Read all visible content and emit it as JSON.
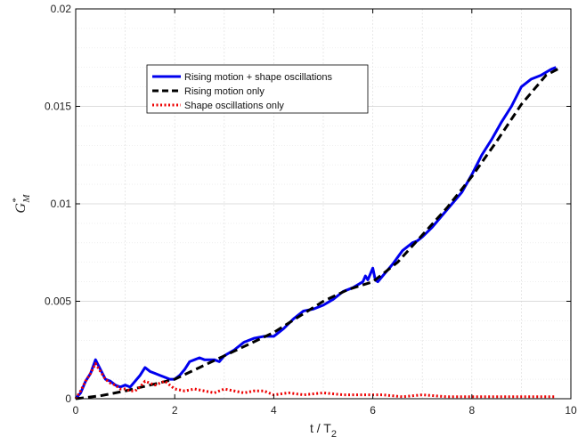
{
  "chart_data": {
    "type": "line",
    "xlabel_main": "t / T",
    "xlabel_sub": "2",
    "ylabel_main": "G",
    "ylabel_sup": "*",
    "ylabel_sub": "M",
    "xlim": [
      0,
      10
    ],
    "ylim": [
      0,
      0.02
    ],
    "xticks": [
      0,
      2,
      4,
      6,
      8,
      10
    ],
    "xtick_labels": [
      "0",
      "2",
      "4",
      "6",
      "8",
      "10"
    ],
    "yticks": [
      0,
      0.005,
      0.01,
      0.015,
      0.02
    ],
    "ytick_labels": [
      "0",
      "0.005",
      "0.01",
      "0.015",
      "0.02"
    ],
    "grid": true,
    "legend_position": "upper-left-center",
    "series": [
      {
        "name": "Rising motion + shape oscillations",
        "color": "#0000ee",
        "style": "solid",
        "x": [
          0,
          0.1,
          0.2,
          0.3,
          0.4,
          0.5,
          0.6,
          0.7,
          0.8,
          0.9,
          1.0,
          1.1,
          1.2,
          1.3,
          1.4,
          1.5,
          1.6,
          1.7,
          1.8,
          1.9,
          2.0,
          2.1,
          2.2,
          2.3,
          2.4,
          2.5,
          2.6,
          2.7,
          2.8,
          2.9,
          3.0,
          3.2,
          3.4,
          3.6,
          3.8,
          4.0,
          4.2,
          4.4,
          4.6,
          4.8,
          5.0,
          5.2,
          5.4,
          5.6,
          5.8,
          5.85,
          5.9,
          6.0,
          6.05,
          6.1,
          6.2,
          6.4,
          6.6,
          6.8,
          6.9,
          7.0,
          7.2,
          7.4,
          7.6,
          7.8,
          8.0,
          8.2,
          8.4,
          8.6,
          8.8,
          9.0,
          9.2,
          9.4,
          9.6,
          9.7
        ],
        "y": [
          0,
          0.0003,
          0.0009,
          0.0013,
          0.002,
          0.0015,
          0.001,
          0.0009,
          0.0007,
          0.0006,
          0.0007,
          0.0006,
          0.0009,
          0.0012,
          0.0016,
          0.0014,
          0.0013,
          0.0012,
          0.0011,
          0.001,
          0.001,
          0.0012,
          0.0015,
          0.0019,
          0.002,
          0.0021,
          0.002,
          0.002,
          0.002,
          0.0019,
          0.0022,
          0.0025,
          0.0029,
          0.0031,
          0.0032,
          0.0032,
          0.0036,
          0.0041,
          0.0045,
          0.0046,
          0.0048,
          0.0051,
          0.0055,
          0.0057,
          0.006,
          0.0063,
          0.0061,
          0.0067,
          0.0061,
          0.006,
          0.0063,
          0.0069,
          0.0076,
          0.008,
          0.0081,
          0.0083,
          0.0088,
          0.0094,
          0.01,
          0.0106,
          0.0115,
          0.0125,
          0.0133,
          0.0142,
          0.015,
          0.016,
          0.0164,
          0.0166,
          0.0169,
          0.017
        ]
      },
      {
        "name": "Rising motion only",
        "color": "#000000",
        "style": "dashed",
        "x": [
          0,
          0.5,
          1.0,
          1.5,
          2.0,
          2.5,
          3.0,
          3.5,
          4.0,
          4.5,
          5.0,
          5.5,
          6.0,
          6.5,
          7.0,
          7.5,
          8.0,
          8.5,
          9.0,
          9.5,
          9.8
        ],
        "y": [
          0,
          0.00015,
          0.0004,
          0.0007,
          0.001,
          0.0016,
          0.0022,
          0.0028,
          0.0034,
          0.0042,
          0.005,
          0.0056,
          0.006,
          0.007,
          0.0084,
          0.0098,
          0.0114,
          0.0132,
          0.0151,
          0.0166,
          0.017
        ]
      },
      {
        "name": "Shape oscillations only",
        "color": "#ee0000",
        "style": "dotted",
        "x": [
          0,
          0.1,
          0.2,
          0.3,
          0.4,
          0.5,
          0.6,
          0.7,
          0.8,
          0.9,
          1.0,
          1.1,
          1.2,
          1.3,
          1.4,
          1.5,
          1.6,
          1.7,
          1.8,
          1.9,
          2.0,
          2.2,
          2.4,
          2.6,
          2.8,
          3.0,
          3.2,
          3.4,
          3.6,
          3.8,
          4.0,
          4.3,
          4.6,
          5.0,
          5.4,
          5.8,
          6.2,
          6.6,
          7.0,
          7.5,
          8.0,
          8.5,
          9.0,
          9.5,
          9.7
        ],
        "y": [
          0,
          0.0004,
          0.0009,
          0.0013,
          0.0018,
          0.0014,
          0.001,
          0.0008,
          0.0007,
          0.0005,
          0.0005,
          0.0004,
          0.0004,
          0.0006,
          0.0009,
          0.0008,
          0.0007,
          0.0008,
          0.0009,
          0.0007,
          0.0005,
          0.0004,
          0.0005,
          0.0004,
          0.0003,
          0.0005,
          0.0004,
          0.0003,
          0.0004,
          0.0004,
          0.0002,
          0.0003,
          0.0002,
          0.0003,
          0.0002,
          0.0002,
          0.0002,
          0.0001,
          0.0002,
          0.0001,
          0.0001,
          0.0001,
          0.0001,
          0.0001,
          0.0001
        ]
      }
    ]
  }
}
